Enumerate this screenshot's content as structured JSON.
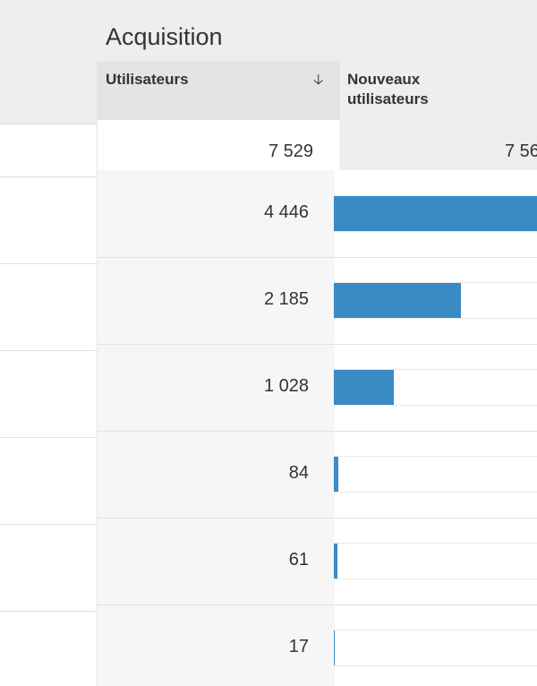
{
  "header": {
    "title": "Acquisition"
  },
  "table": {
    "columns": [
      "Utilisateurs",
      "Nouveaux utilisateurs"
    ],
    "totals": [
      {
        "value": 7529,
        "label": "7 529"
      },
      {
        "label": "7 56"
      }
    ],
    "rows": [
      {
        "value": 4446,
        "label": "4 446"
      },
      {
        "value": 2185,
        "label": "2 185"
      },
      {
        "value": 1028,
        "label": "1 028"
      },
      {
        "value": 84,
        "label": "84"
      },
      {
        "value": 61,
        "label": "61"
      },
      {
        "value": 17,
        "label": "17"
      }
    ]
  }
}
